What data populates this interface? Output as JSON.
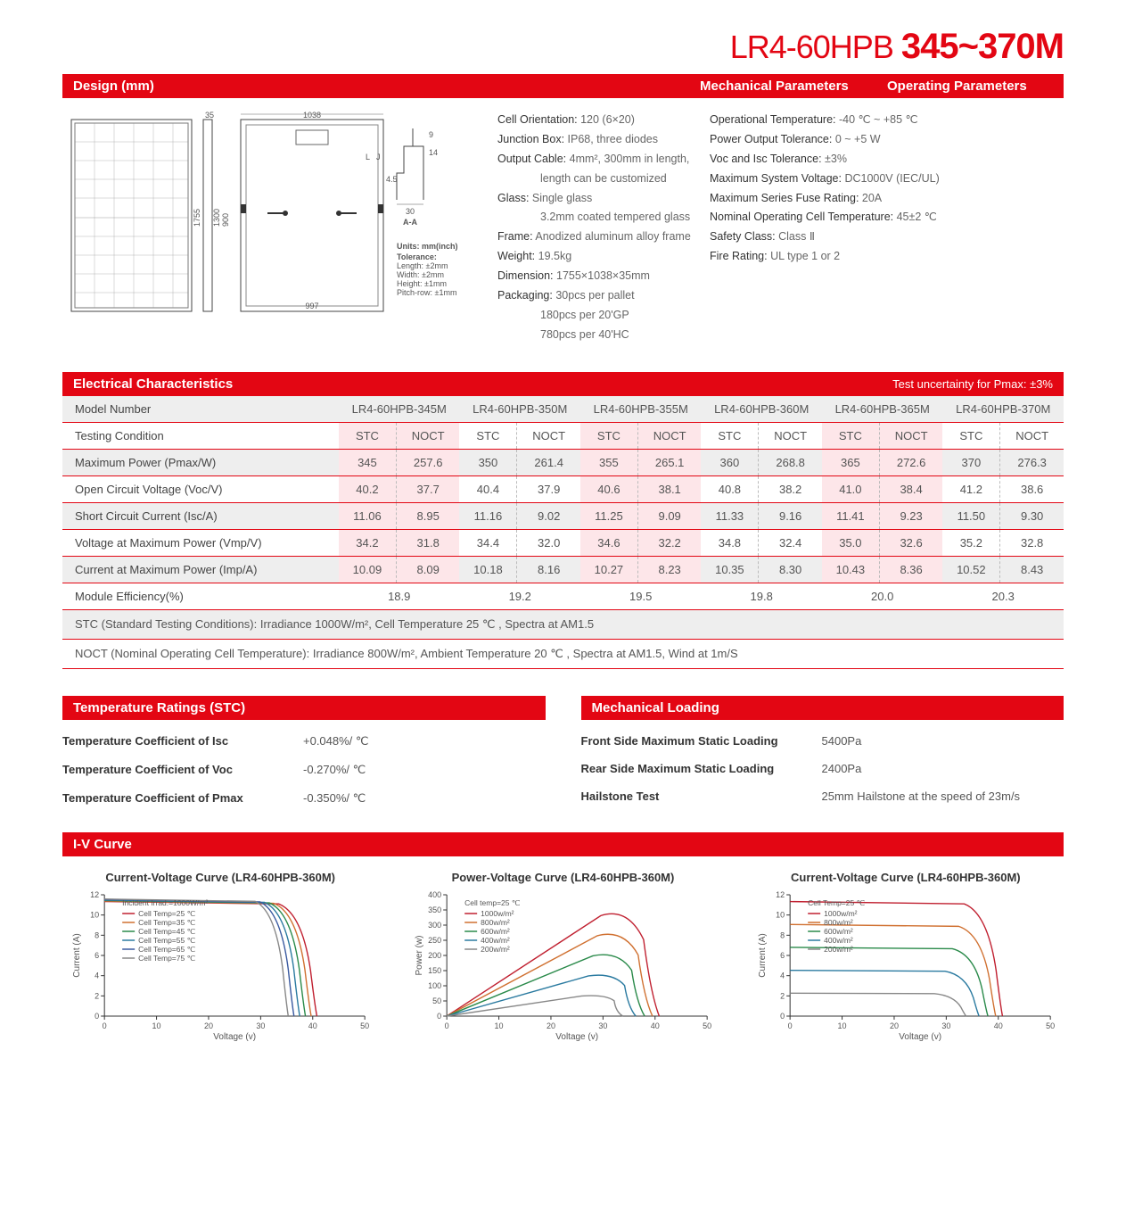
{
  "title": {
    "prefix": "LR4-60HPB ",
    "suffix": "345~370M"
  },
  "header": {
    "design": "Design (mm)",
    "mech": "Mechanical Parameters",
    "oper": "Operating Parameters"
  },
  "design": {
    "front_w": "1038",
    "front_h": "1755",
    "inner_h": "1300",
    "900": "900",
    "35": "35",
    "bottom_w": "997",
    "units_label": "Units: mm(inch)",
    "tol_label": "Tolerance:",
    "tol_l": "Length: ±2mm",
    "tol_w": "Width: ±2mm",
    "tol_h": "Height: ±1mm",
    "tol_p": "Pitch-row: ±1mm",
    "aa": "A-A",
    "30": "30",
    "9": "9",
    "14": "14",
    "4p5": "4.5",
    "L": "L",
    "J": "J"
  },
  "mech_params": [
    [
      "Cell Orientation:",
      " 120 (6×20)"
    ],
    [
      "Junction Box:",
      " IP68, three diodes"
    ],
    [
      "Output Cable:",
      " 4mm², 300mm in length,"
    ],
    [
      "",
      "length can be customized"
    ],
    [
      "Glass:",
      " Single glass"
    ],
    [
      "",
      "3.2mm coated tempered glass"
    ],
    [
      "Frame:",
      " Anodized aluminum alloy frame"
    ],
    [
      "Weight:",
      " 19.5kg"
    ],
    [
      "Dimension:",
      " 1755×1038×35mm"
    ],
    [
      "Packaging:",
      " 30pcs per pallet"
    ],
    [
      "",
      "180pcs per 20'GP"
    ],
    [
      "",
      "780pcs per 40'HC"
    ]
  ],
  "oper_params": [
    [
      "Operational Temperature:",
      " -40 ℃ ~ +85 ℃"
    ],
    [
      "Power Output Tolerance:",
      " 0 ~ +5 W"
    ],
    [
      "Voc and Isc Tolerance:",
      " ±3%"
    ],
    [
      "Maximum System Voltage:",
      " DC1000V (IEC/UL)"
    ],
    [
      "Maximum Series Fuse Rating:",
      " 20A"
    ],
    [
      "Nominal Operating Cell Temperature:",
      " 45±2 ℃"
    ],
    [
      "Safety Class:",
      " Class Ⅱ"
    ],
    [
      "Fire Rating:",
      " UL type 1 or 2"
    ]
  ],
  "elec": {
    "title": "Electrical Characteristics",
    "sub": "Test uncertainty for Pmax: ±3%",
    "models": [
      "LR4-60HPB-345M",
      "LR4-60HPB-350M",
      "LR4-60HPB-355M",
      "LR4-60HPB-360M",
      "LR4-60HPB-365M",
      "LR4-60HPB-370M"
    ],
    "model_label": "Model Number",
    "cond_label": "Testing Condition",
    "stc": "STC",
    "noct": "NOCT",
    "rows": [
      {
        "label": "Maximum Power (Pmax/W)",
        "vals": [
          "345",
          "257.6",
          "350",
          "261.4",
          "355",
          "265.1",
          "360",
          "268.8",
          "365",
          "272.6",
          "370",
          "276.3"
        ]
      },
      {
        "label": "Open Circuit Voltage (Voc/V)",
        "vals": [
          "40.2",
          "37.7",
          "40.4",
          "37.9",
          "40.6",
          "38.1",
          "40.8",
          "38.2",
          "41.0",
          "38.4",
          "41.2",
          "38.6"
        ]
      },
      {
        "label": "Short Circuit Current (Isc/A)",
        "vals": [
          "11.06",
          "8.95",
          "11.16",
          "9.02",
          "11.25",
          "9.09",
          "11.33",
          "9.16",
          "11.41",
          "9.23",
          "11.50",
          "9.30"
        ]
      },
      {
        "label": "Voltage at Maximum Power (Vmp/V)",
        "vals": [
          "34.2",
          "31.8",
          "34.4",
          "32.0",
          "34.6",
          "32.2",
          "34.8",
          "32.4",
          "35.0",
          "32.6",
          "35.2",
          "32.8"
        ]
      },
      {
        "label": "Current at Maximum Power (Imp/A)",
        "vals": [
          "10.09",
          "8.09",
          "10.18",
          "8.16",
          "10.27",
          "8.23",
          "10.35",
          "8.30",
          "10.43",
          "8.36",
          "10.52",
          "8.43"
        ]
      }
    ],
    "eff_label": "Module Efficiency(%)",
    "eff": [
      "18.9",
      "19.2",
      "19.5",
      "19.8",
      "20.0",
      "20.3"
    ],
    "footnote1": "STC (Standard Testing Conditions): Irradiance 1000W/m², Cell Temperature 25 ℃ , Spectra at AM1.5",
    "footnote2": "NOCT (Nominal Operating Cell Temperature): Irradiance 800W/m², Ambient Temperature 20 ℃ , Spectra at AM1.5, Wind at 1m/S"
  },
  "temp_ratings": {
    "title": "Temperature Ratings (STC)",
    "rows": [
      [
        "Temperature Coefficient of  Isc",
        "+0.048%/ ℃"
      ],
      [
        "Temperature Coefficient of  Voc",
        "-0.270%/ ℃"
      ],
      [
        "Temperature Coefficient of  Pmax",
        "-0.350%/ ℃"
      ]
    ]
  },
  "mech_load": {
    "title": "Mechanical Loading",
    "rows": [
      [
        "Front Side Maximum Static Loading",
        "5400Pa"
      ],
      [
        "Rear Side Maximum Static Loading",
        "2400Pa"
      ],
      [
        "Hailstone Test",
        "25mm Hailstone at the speed of 23m/s"
      ]
    ]
  },
  "iv": {
    "title": "I-V Curve",
    "chart1": {
      "title": "Current-Voltage Curve (LR4-60HPB-360M)",
      "xlabel": "Voltage (v)",
      "ylabel": "Current (A)",
      "xlim": [
        0,
        50
      ],
      "ylim": [
        0,
        12
      ],
      "xticks": [
        0,
        10,
        20,
        30,
        40,
        50
      ],
      "yticks": [
        0,
        2,
        4,
        6,
        8,
        10,
        12
      ],
      "note": "Incident Irrad.=1000W/m²",
      "legend": [
        "Cell Temp=25 ℃",
        "Cell Temp=35 ℃",
        "Cell Temp=45 ℃",
        "Cell Temp=55 ℃",
        "Cell Temp=65 ℃",
        "Cell Temp=75 ℃"
      ],
      "colors": [
        "#c02030",
        "#d07030",
        "#2a8a4a",
        "#2a7aa0",
        "#3a5aa0",
        "#888888"
      ],
      "curves": [
        {
          "isc": 11.33,
          "voc": 40.8
        },
        {
          "isc": 11.38,
          "voc": 39.7
        },
        {
          "isc": 11.43,
          "voc": 38.6
        },
        {
          "isc": 11.48,
          "voc": 37.5
        },
        {
          "isc": 11.53,
          "voc": 36.4
        },
        {
          "isc": 11.58,
          "voc": 35.3
        }
      ]
    },
    "chart2": {
      "title": "Power-Voltage Curve (LR4-60HPB-360M)",
      "xlabel": "Voltage (v)",
      "ylabel": "Power (w)",
      "xlim": [
        0,
        50
      ],
      "ylim": [
        0,
        400
      ],
      "xticks": [
        0,
        10,
        20,
        30,
        40,
        50
      ],
      "yticks": [
        0,
        50,
        100,
        150,
        200,
        250,
        300,
        350,
        400
      ],
      "note": "Cell temp=25 ℃",
      "legend": [
        "1000w/m²",
        "800w/m²",
        "600w/m²",
        "400w/m²",
        "200w/m²"
      ],
      "colors": [
        "#c02030",
        "#d07030",
        "#2a8a4a",
        "#2a7aa0",
        "#888888"
      ],
      "curves": [
        {
          "pmax": 360,
          "vmp": 34.8,
          "voc": 40.8
        },
        {
          "pmax": 288,
          "vmp": 34.0,
          "voc": 39.5
        },
        {
          "pmax": 216,
          "vmp": 33.0,
          "voc": 38.0
        },
        {
          "pmax": 144,
          "vmp": 32.0,
          "voc": 36.3
        },
        {
          "pmax": 72,
          "vmp": 30.5,
          "voc": 33.8
        }
      ]
    },
    "chart3": {
      "title": "Current-Voltage Curve (LR4-60HPB-360M)",
      "xlabel": "Voltage (v)",
      "ylabel": "Current (A)",
      "xlim": [
        0,
        50
      ],
      "ylim": [
        0,
        12
      ],
      "xticks": [
        0,
        10,
        20,
        30,
        40,
        50
      ],
      "yticks": [
        0,
        2,
        4,
        6,
        8,
        10,
        12
      ],
      "note": "Cell Temp=25 ℃",
      "legend": [
        "1000w/m²",
        "800w/m²",
        "600w/m²",
        "400w/m²",
        "200w/m²"
      ],
      "colors": [
        "#c02030",
        "#d07030",
        "#2a8a4a",
        "#2a7aa0",
        "#888888"
      ],
      "curves": [
        {
          "isc": 11.33,
          "voc": 40.8
        },
        {
          "isc": 9.06,
          "voc": 39.5
        },
        {
          "isc": 6.8,
          "voc": 38.0
        },
        {
          "isc": 4.53,
          "voc": 36.3
        },
        {
          "isc": 2.27,
          "voc": 33.8
        }
      ]
    }
  }
}
